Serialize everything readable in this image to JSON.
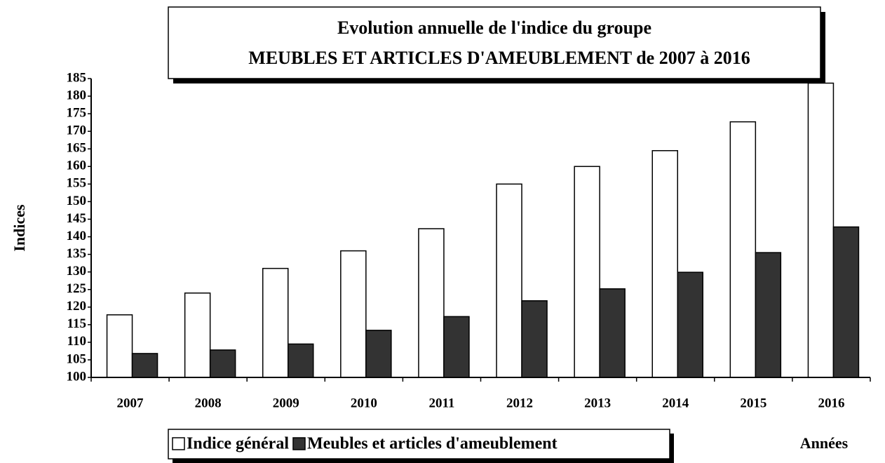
{
  "chart_data": {
    "type": "bar",
    "title": "Evolution annuelle de l'indice du groupe",
    "subtitle": "MEUBLES ET ARTICLES D'AMEUBLEMENT  de 2007 à 2016",
    "y_label": "Indices",
    "x_label": "Années",
    "categories": [
      "2007",
      "2008",
      "2009",
      "2010",
      "2011",
      "2012",
      "2013",
      "2014",
      "2015",
      "2016"
    ],
    "series": [
      {
        "name": "Indice général",
        "color": "#ffffff",
        "values": [
          117.8,
          124,
          131,
          136,
          142.3,
          155,
          160,
          164.5,
          172.7,
          183.7
        ]
      },
      {
        "name": "Meubles et articles d'ameublement",
        "color": "#333333",
        "values": [
          106.8,
          107.8,
          109.5,
          113.4,
          117.3,
          121.8,
          125.2,
          129.9,
          135.5,
          142.8
        ]
      }
    ],
    "ylim": [
      100,
      185
    ],
    "yticks": [
      100,
      105,
      110,
      115,
      120,
      125,
      130,
      135,
      140,
      145,
      150,
      155,
      160,
      165,
      170,
      175,
      180,
      185
    ]
  }
}
